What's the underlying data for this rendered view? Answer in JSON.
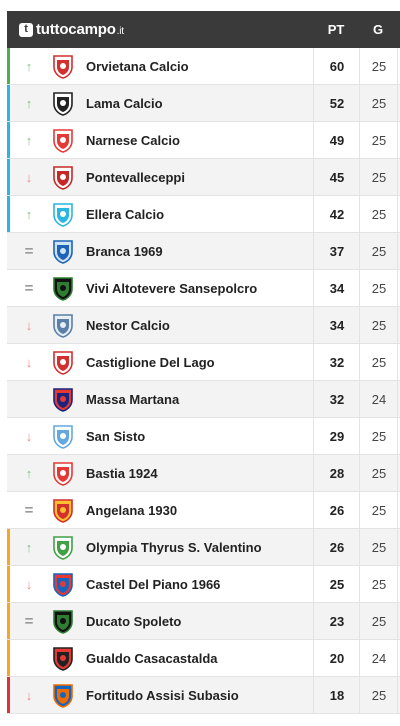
{
  "brand": {
    "name": "tuttocampo",
    "tld": ".it",
    "logo_letter": "t"
  },
  "columns": {
    "points": "PT",
    "games": "G"
  },
  "colors": {
    "header_bg": "#3a3a3a",
    "promo": "#4caf50",
    "playoff": "#29b6e0",
    "playout": "#f5a623",
    "relegation": "#e0303a",
    "trend_up": "#7fc47f",
    "trend_down": "#f08a8a"
  },
  "rows": [
    {
      "team": "Orvietana Calcio",
      "pt": "60",
      "g": "25",
      "trend": "up",
      "band": "promo",
      "crest": "red-shield-crest"
    },
    {
      "team": "Lama Calcio",
      "pt": "52",
      "g": "25",
      "trend": "up",
      "band": "playoff",
      "crest": "black-white-crest"
    },
    {
      "team": "Narnese Calcio",
      "pt": "49",
      "g": "25",
      "trend": "up",
      "band": "playoff",
      "crest": "red-white-crest"
    },
    {
      "team": "Pontevalleceppi",
      "pt": "45",
      "g": "25",
      "trend": "down",
      "band": "playoff",
      "crest": "red-oval-crest"
    },
    {
      "team": "Ellera Calcio",
      "pt": "42",
      "g": "25",
      "trend": "up",
      "band": "playoff",
      "crest": "cyan-crest"
    },
    {
      "team": "Branca 1969",
      "pt": "37",
      "g": "25",
      "trend": "eq",
      "band": "",
      "crest": "blue-wing-crest"
    },
    {
      "team": "Vivi Altotevere Sansepolcro",
      "pt": "34",
      "g": "25",
      "trend": "eq",
      "band": "",
      "crest": "green-black-crest"
    },
    {
      "team": "Nestor Calcio",
      "pt": "34",
      "g": "25",
      "trend": "down",
      "band": "",
      "crest": "blue-shield-crest"
    },
    {
      "team": "Castiglione Del Lago",
      "pt": "32",
      "g": "25",
      "trend": "down",
      "band": "",
      "crest": "red-white-stripe-crest"
    },
    {
      "team": "Massa Martana",
      "pt": "32",
      "g": "24",
      "trend": "none",
      "band": "",
      "crest": "navy-red-crest"
    },
    {
      "team": "San Sisto",
      "pt": "29",
      "g": "25",
      "trend": "down",
      "band": "",
      "crest": "lightblue-crest"
    },
    {
      "team": "Bastia 1924",
      "pt": "28",
      "g": "25",
      "trend": "up",
      "band": "",
      "crest": "red-white-crest"
    },
    {
      "team": "Angelana 1930",
      "pt": "26",
      "g": "25",
      "trend": "eq",
      "band": "",
      "crest": "red-yellow-crest"
    },
    {
      "team": "Olympia Thyrus S. Valentino",
      "pt": "26",
      "g": "25",
      "trend": "up",
      "band": "playout",
      "crest": "green-round-crest"
    },
    {
      "team": "Castel Del Piano 1966",
      "pt": "25",
      "g": "25",
      "trend": "down",
      "band": "playout",
      "crest": "blue-red-round-crest"
    },
    {
      "team": "Ducato Spoleto",
      "pt": "23",
      "g": "25",
      "trend": "eq",
      "band": "playout",
      "crest": "green-black-crest"
    },
    {
      "team": "Gualdo Casacastalda",
      "pt": "20",
      "g": "24",
      "trend": "none",
      "band": "playout",
      "crest": "black-red-round-crest"
    },
    {
      "team": "Fortitudo Assisi Subasio",
      "pt": "18",
      "g": "25",
      "trend": "down",
      "band": "relegation",
      "crest": "orange-blue-crest"
    }
  ]
}
